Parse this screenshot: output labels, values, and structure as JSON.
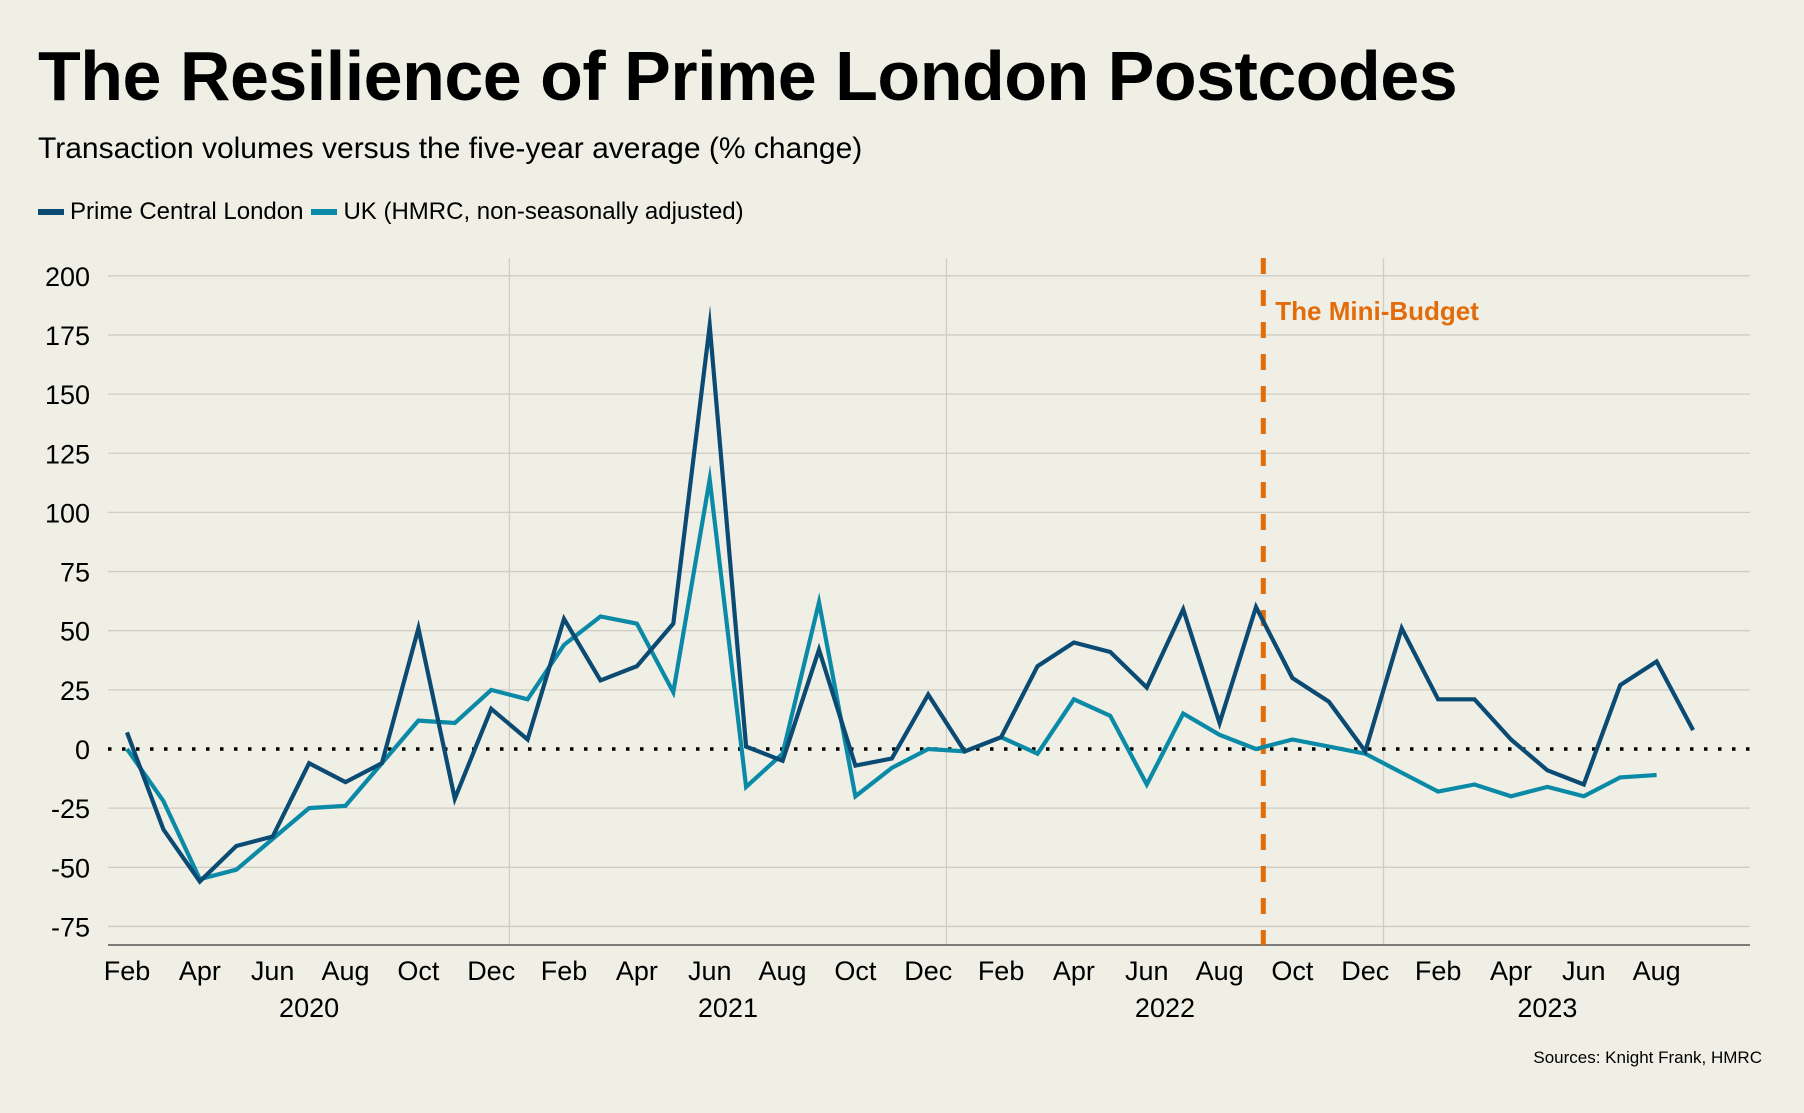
{
  "title": "The Resilience of Prime London Postcodes",
  "subtitle": "Transaction volumes versus the five-year average (% change)",
  "source": "Sources: Knight Frank, HMRC",
  "colors": {
    "background": "#f0efe5",
    "pcl": "#0b4a72",
    "uk": "#0a8aa6",
    "annotation": "#e36c0a",
    "grid": "#cfcdc4",
    "zero_line": "#000000"
  },
  "chart_data": {
    "type": "line",
    "title": "The Resilience of Prime London Postcodes",
    "subtitle": "Transaction volumes versus the five-year average (% change)",
    "xlabel": "",
    "ylabel": "",
    "ylim": [
      -82,
      212
    ],
    "yticks": [
      200,
      175,
      150,
      125,
      100,
      75,
      50,
      25,
      0,
      -25,
      -50,
      -75
    ],
    "grid": true,
    "legend_position": "top-left",
    "x": [
      "Feb 2020",
      "Mar 2020",
      "Apr 2020",
      "May 2020",
      "Jun 2020",
      "Jul 2020",
      "Aug 2020",
      "Sep 2020",
      "Oct 2020",
      "Nov 2020",
      "Dec 2020",
      "Jan 2021",
      "Feb 2021",
      "Mar 2021",
      "Apr 2021",
      "May 2021",
      "Jun 2021",
      "Jul 2021",
      "Aug 2021",
      "Sep 2021",
      "Oct 2021",
      "Nov 2021",
      "Dec 2021",
      "Jan 2022",
      "Feb 2022",
      "Mar 2022",
      "Apr 2022",
      "May 2022",
      "Jun 2022",
      "Jul 2022",
      "Aug 2022",
      "Sep 2022",
      "Oct 2022",
      "Nov 2022",
      "Dec 2022",
      "Jan 2023",
      "Feb 2023",
      "Mar 2023",
      "Apr 2023",
      "May 2023",
      "Jun 2023",
      "Jul 2023",
      "Aug 2023",
      "Sep 2023",
      "Oct 2023"
    ],
    "x_tick_labels": [
      {
        "index": 0,
        "label": "Feb"
      },
      {
        "index": 2,
        "label": "Apr"
      },
      {
        "index": 4,
        "label": "Jun"
      },
      {
        "index": 6,
        "label": "Aug"
      },
      {
        "index": 8,
        "label": "Oct"
      },
      {
        "index": 10,
        "label": "Dec"
      },
      {
        "index": 12,
        "label": "Feb"
      },
      {
        "index": 14,
        "label": "Apr"
      },
      {
        "index": 16,
        "label": "Jun"
      },
      {
        "index": 18,
        "label": "Aug"
      },
      {
        "index": 20,
        "label": "Oct"
      },
      {
        "index": 22,
        "label": "Dec"
      },
      {
        "index": 24,
        "label": "Feb"
      },
      {
        "index": 26,
        "label": "Apr"
      },
      {
        "index": 28,
        "label": "Jun"
      },
      {
        "index": 30,
        "label": "Aug"
      },
      {
        "index": 32,
        "label": "Oct"
      },
      {
        "index": 34,
        "label": "Dec"
      },
      {
        "index": 36,
        "label": "Feb"
      },
      {
        "index": 38,
        "label": "Apr"
      },
      {
        "index": 40,
        "label": "Jun"
      },
      {
        "index": 42,
        "label": "Aug"
      }
    ],
    "year_labels": [
      {
        "center_index": 5,
        "label": "2020"
      },
      {
        "center_index": 16.5,
        "label": "2021"
      },
      {
        "center_index": 28.5,
        "label": "2022"
      },
      {
        "center_index": 39,
        "label": "2023"
      }
    ],
    "year_gridlines_index": [
      10.5,
      22.5,
      34.5
    ],
    "series": [
      {
        "name": "Prime Central London",
        "color": "#0b4a72",
        "values": [
          7,
          -34,
          -56,
          -41,
          -37,
          -6,
          -14,
          -6,
          51,
          -21,
          17,
          4,
          55,
          29,
          35,
          53,
          179,
          1,
          -5,
          42,
          -7,
          -4,
          23,
          -1,
          5,
          35,
          45,
          41,
          26,
          59,
          11,
          60,
          30,
          20,
          -1,
          51,
          21,
          21,
          4,
          -9,
          -15,
          27,
          37,
          8
        ]
      },
      {
        "name": "UK (HMRC, non-seasonally adjusted)",
        "color": "#0a8aa6",
        "values": [
          0,
          -22,
          -55,
          -51,
          -38,
          -25,
          -24,
          -6,
          12,
          11,
          25,
          21,
          44,
          56,
          53,
          24,
          114,
          -16,
          -2,
          62,
          -20,
          -8,
          0,
          -1,
          5,
          -2,
          21,
          14,
          -15,
          15,
          6,
          0,
          4,
          1,
          -2,
          -10,
          -18,
          -15,
          -20,
          -16,
          -20,
          -12,
          -11
        ]
      }
    ],
    "annotations": [
      {
        "type": "vertical-dashed-line",
        "x_index": 31.2,
        "label": "The Mini-Budget",
        "color": "#e36c0a"
      }
    ],
    "reference_line": {
      "y": 0,
      "style": "dotted"
    }
  }
}
